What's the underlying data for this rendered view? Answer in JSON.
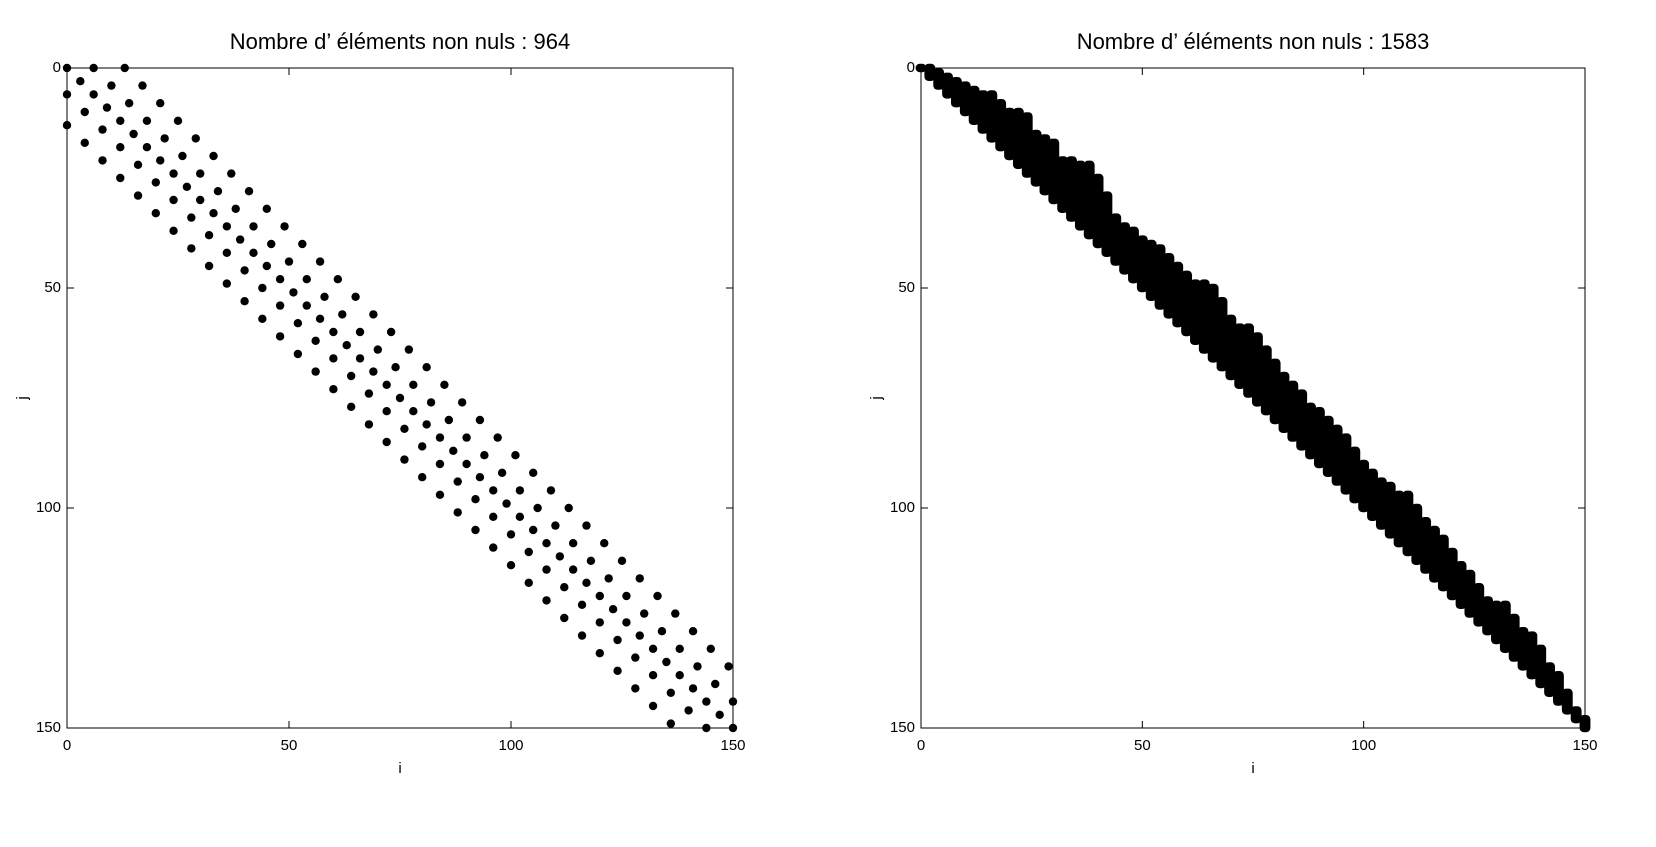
{
  "chart_data": [
    {
      "type": "scatter",
      "title": "Nombre d’ éléments non nuls : 964",
      "x_label": "i",
      "y_label": "j",
      "xlim": [
        0,
        150
      ],
      "ylim": [
        0,
        150
      ],
      "y_reversed": true,
      "xticks": [
        0,
        50,
        100,
        150
      ],
      "yticks": [
        0,
        50,
        100,
        150
      ],
      "color": "#000000",
      "x": [
        0,
        3,
        6,
        9,
        12,
        15,
        18,
        21,
        24,
        27,
        30,
        33,
        36,
        39,
        42,
        45,
        48,
        51,
        54,
        57,
        60,
        63,
        66,
        69,
        72,
        75,
        78,
        81,
        84,
        87,
        90,
        93,
        96,
        99,
        102,
        105,
        108,
        111,
        114,
        117,
        120,
        123,
        126,
        129,
        132,
        135,
        138,
        141,
        144,
        147,
        150,
        0,
        4,
        8,
        12,
        16,
        20,
        24,
        28,
        32,
        36,
        40,
        44,
        48,
        52,
        56,
        60,
        64,
        68,
        72,
        76,
        80,
        84,
        88,
        92,
        96,
        100,
        104,
        108,
        112,
        116,
        120,
        124,
        128,
        132,
        136,
        140,
        144,
        6,
        10,
        14,
        18,
        22,
        26,
        30,
        34,
        38,
        42,
        46,
        50,
        54,
        58,
        62,
        66,
        70,
        74,
        78,
        82,
        86,
        90,
        94,
        98,
        102,
        106,
        110,
        114,
        118,
        122,
        126,
        130,
        134,
        138,
        142,
        146,
        150,
        0,
        4,
        8,
        12,
        16,
        20,
        24,
        28,
        32,
        36,
        40,
        44,
        48,
        52,
        56,
        60,
        64,
        68,
        72,
        76,
        80,
        84,
        88,
        92,
        96,
        100,
        104,
        108,
        112,
        116,
        120,
        124,
        128,
        132,
        136,
        13,
        17,
        21,
        25,
        29,
        33,
        37,
        41,
        45,
        49,
        53,
        57,
        61,
        65,
        69,
        73,
        77,
        81,
        85,
        89,
        93,
        97,
        101,
        105,
        109,
        113,
        117,
        121,
        125,
        129,
        133,
        137,
        141,
        145,
        149
      ],
      "values": [
        0,
        3,
        6,
        9,
        12,
        15,
        18,
        21,
        24,
        27,
        30,
        33,
        36,
        39,
        42,
        45,
        48,
        51,
        54,
        57,
        60,
        63,
        66,
        69,
        72,
        75,
        78,
        81,
        84,
        87,
        90,
        93,
        96,
        99,
        102,
        105,
        108,
        111,
        114,
        117,
        120,
        123,
        126,
        129,
        132,
        135,
        138,
        141,
        144,
        147,
        150,
        6,
        10,
        14,
        18,
        22,
        26,
        30,
        34,
        38,
        42,
        46,
        50,
        54,
        58,
        62,
        66,
        70,
        74,
        78,
        82,
        86,
        90,
        94,
        98,
        102,
        106,
        110,
        114,
        118,
        122,
        126,
        130,
        134,
        138,
        142,
        146,
        150,
        0,
        4,
        8,
        12,
        16,
        20,
        24,
        28,
        32,
        36,
        40,
        44,
        48,
        52,
        56,
        60,
        64,
        68,
        72,
        76,
        80,
        84,
        88,
        92,
        96,
        100,
        104,
        108,
        112,
        116,
        120,
        124,
        128,
        132,
        136,
        140,
        144,
        13,
        17,
        21,
        25,
        29,
        33,
        37,
        41,
        45,
        49,
        53,
        57,
        61,
        65,
        69,
        73,
        77,
        81,
        85,
        89,
        93,
        97,
        101,
        105,
        109,
        113,
        117,
        121,
        125,
        129,
        133,
        137,
        141,
        145,
        149,
        0,
        4,
        8,
        12,
        16,
        20,
        24,
        28,
        32,
        36,
        40,
        44,
        48,
        52,
        56,
        60,
        64,
        68,
        72,
        76,
        80,
        84,
        88,
        92,
        96,
        100,
        104,
        108,
        112,
        116,
        120,
        124,
        128,
        132,
        136
      ]
    },
    {
      "type": "profile",
      "title": "Nombre d’ éléments non nuls : 1583",
      "x_label": "i",
      "y_label": "j",
      "xlim": [
        0,
        150
      ],
      "ylim": [
        0,
        150
      ],
      "y_reversed": true,
      "xticks": [
        0,
        50,
        100,
        150
      ],
      "yticks": [
        0,
        50,
        100,
        150
      ],
      "color": "#000000",
      "x": [
        0,
        2,
        4,
        6,
        8,
        10,
        12,
        14,
        16,
        18,
        20,
        22,
        24,
        26,
        28,
        30,
        32,
        34,
        36,
        38,
        40,
        42,
        44,
        46,
        48,
        50,
        52,
        54,
        56,
        58,
        60,
        62,
        64,
        66,
        68,
        70,
        72,
        74,
        76,
        78,
        80,
        82,
        84,
        86,
        88,
        90,
        92,
        94,
        96,
        98,
        100,
        102,
        104,
        106,
        108,
        110,
        112,
        114,
        116,
        118,
        120,
        122,
        124,
        126,
        128,
        130,
        132,
        134,
        136,
        138,
        140,
        142,
        144,
        146,
        148,
        150
      ],
      "values": [
        0,
        0,
        1,
        2,
        3,
        4,
        5,
        6,
        6,
        8,
        10,
        10,
        11,
        15,
        16,
        17,
        21,
        21,
        22,
        22,
        25,
        29,
        34,
        36,
        37,
        39,
        40,
        41,
        43,
        45,
        47,
        49,
        49,
        50,
        53,
        57,
        59,
        59,
        61,
        64,
        67,
        70,
        72,
        74,
        77,
        78,
        80,
        82,
        84,
        87,
        90,
        92,
        94,
        95,
        97,
        97,
        100,
        103,
        105,
        107,
        110,
        113,
        115,
        118,
        121,
        122,
        122,
        125,
        128,
        129,
        132,
        136,
        138,
        142,
        146,
        148
      ]
    }
  ]
}
